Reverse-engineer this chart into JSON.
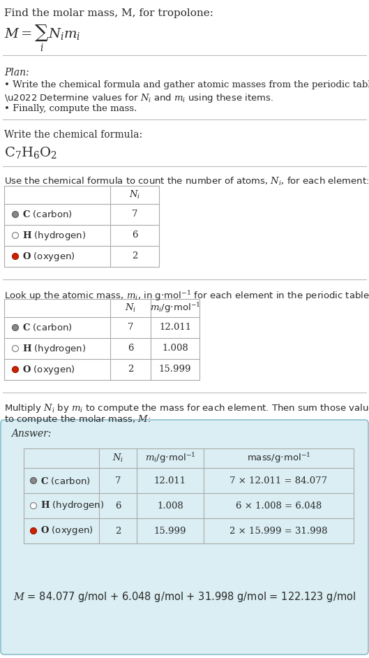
{
  "title_line": "Find the molar mass, M, for tropolone:",
  "bg_color": "#ffffff",
  "answer_box_color": "#daeef3",
  "answer_box_edge": "#8bbfd0",
  "sep_color": "#bbbbbb",
  "table_edge_color": "#aaaaaa",
  "text_color": "#2a2a2a",
  "elements": [
    {
      "symbol": "C",
      "name": "carbon",
      "dot_color": "#888888",
      "dot_edge": "#555555",
      "Ni": "7",
      "mi": "12.011",
      "mass_expr": "7 × 12.011 = 84.077"
    },
    {
      "symbol": "H",
      "name": "hydrogen",
      "dot_color": "#ffffff",
      "dot_edge": "#777777",
      "Ni": "6",
      "mi": "1.008",
      "mass_expr": "6 × 1.008 = 6.048"
    },
    {
      "symbol": "O",
      "name": "oxygen",
      "dot_color": "#cc2200",
      "dot_edge": "#991100",
      "Ni": "2",
      "mi": "15.999",
      "mass_expr": "2 × 15.999 = 31.998"
    }
  ],
  "final_eq": "$M$ = 84.077 g/mol + 6.048 g/mol + 31.998 g/mol = 122.123 g/mol"
}
